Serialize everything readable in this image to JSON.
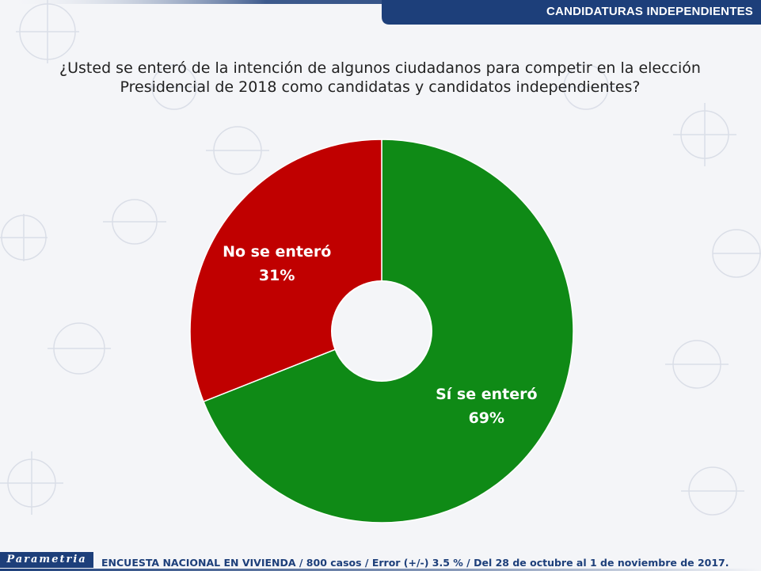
{
  "header": {
    "title": "CANDIDATURAS INDEPENDIENTES"
  },
  "question": "¿Usted se enteró de la intención de algunos ciudadanos para competir en la elección Presidencial de 2018 como candidatas y candidatos independientes?",
  "footer": {
    "logo": "Parametria",
    "note": "ENCUESTA NACIONAL EN VIVIENDA / 800 casos / Error (+/-) 3.5 % / Del 28 de octubre al 1 de noviembre de 2017."
  },
  "colors": {
    "header": "#1d3f7a",
    "yes": "#0f8a16",
    "no": "#c00000"
  },
  "chart_data": {
    "type": "pie",
    "variant": "donut",
    "slices": [
      {
        "label": "Sí se enteró",
        "value": 69,
        "value_label": "69%",
        "color": "#0f8a16"
      },
      {
        "label": "No se enteró",
        "value": 31,
        "value_label": "31%",
        "color": "#c00000"
      }
    ],
    "start": "top",
    "direction": "clockwise"
  }
}
